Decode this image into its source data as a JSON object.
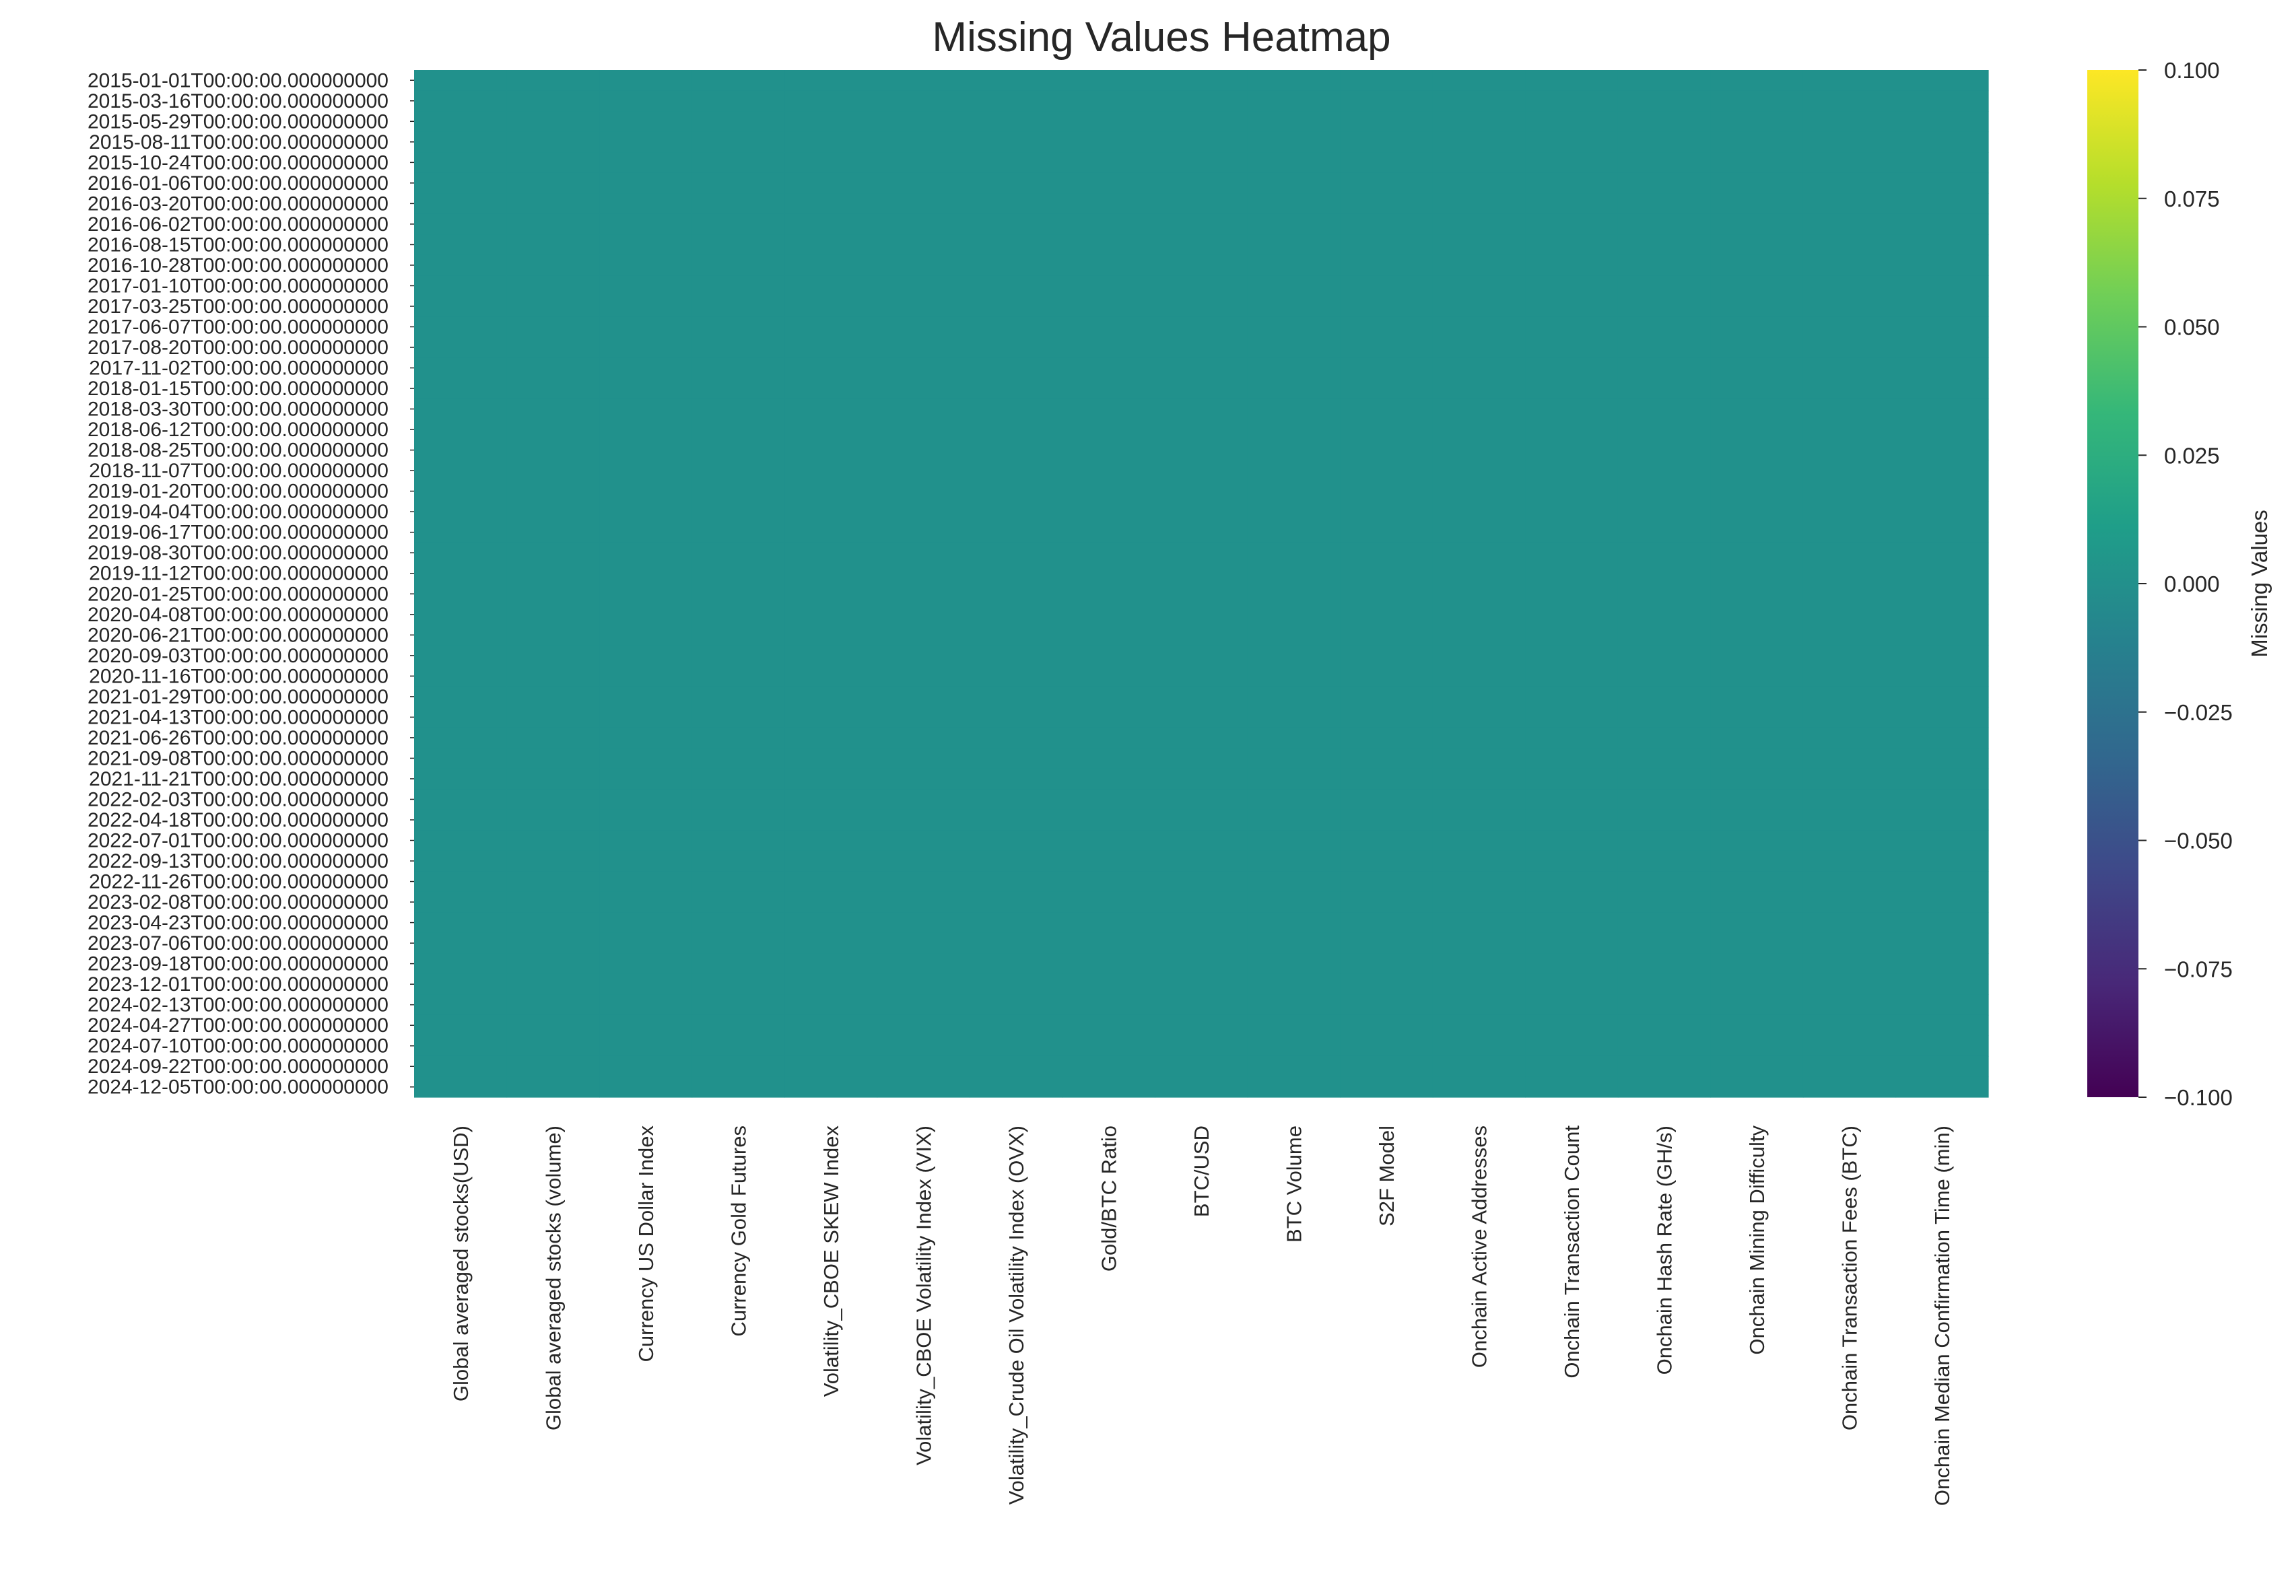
{
  "chart_data": {
    "type": "heatmap",
    "title": "Missing Values Heatmap",
    "xlabel": "",
    "ylabel": "",
    "colormap": "viridis",
    "colorbar": {
      "label": "Missing Values",
      "range": [
        -0.1,
        0.1
      ],
      "ticks": [
        "0.100",
        "0.075",
        "0.050",
        "0.025",
        "0.000",
        "−0.025",
        "−0.050",
        "−0.075",
        "−0.100"
      ],
      "tick_values": [
        0.1,
        0.075,
        0.05,
        0.025,
        0.0,
        -0.025,
        -0.05,
        -0.075,
        -0.1
      ],
      "colors": [
        "#440154",
        "#482878",
        "#3e4989",
        "#31688e",
        "#26828e",
        "#1f9e89",
        "#35b779",
        "#6ece58",
        "#b5de2b",
        "#fde725"
      ]
    },
    "cell_value": 0,
    "cell_color": "#21918c",
    "columns": [
      "Global averaged stocks(USD)",
      "Global averaged stocks (volume)",
      "Currency US Dollar Index",
      "Currency Gold Futures",
      "Volatility_CBOE SKEW Index",
      "Volatility_CBOE Volatility Index (VIX)",
      "Volatility_Crude Oil Volatility Index (OVX)",
      "Gold/BTC Ratio",
      "BTC/USD",
      "BTC Volume",
      "S2F Model",
      "Onchain Active Addresses",
      "Onchain Transaction Count",
      "Onchain Hash Rate (GH/s)",
      "Onchain Mining Difficulty",
      "Onchain Transaction Fees (BTC)",
      "Onchain Median Confirmation Time (min)"
    ],
    "row_labels": [
      "2015-01-01T00:00:00.000000000",
      "2015-03-16T00:00:00.000000000",
      "2015-05-29T00:00:00.000000000",
      "2015-08-11T00:00:00.000000000",
      "2015-10-24T00:00:00.000000000",
      "2016-01-06T00:00:00.000000000",
      "2016-03-20T00:00:00.000000000",
      "2016-06-02T00:00:00.000000000",
      "2016-08-15T00:00:00.000000000",
      "2016-10-28T00:00:00.000000000",
      "2017-01-10T00:00:00.000000000",
      "2017-03-25T00:00:00.000000000",
      "2017-06-07T00:00:00.000000000",
      "2017-08-20T00:00:00.000000000",
      "2017-11-02T00:00:00.000000000",
      "2018-01-15T00:00:00.000000000",
      "2018-03-30T00:00:00.000000000",
      "2018-06-12T00:00:00.000000000",
      "2018-08-25T00:00:00.000000000",
      "2018-11-07T00:00:00.000000000",
      "2019-01-20T00:00:00.000000000",
      "2019-04-04T00:00:00.000000000",
      "2019-06-17T00:00:00.000000000",
      "2019-08-30T00:00:00.000000000",
      "2019-11-12T00:00:00.000000000",
      "2020-01-25T00:00:00.000000000",
      "2020-04-08T00:00:00.000000000",
      "2020-06-21T00:00:00.000000000",
      "2020-09-03T00:00:00.000000000",
      "2020-11-16T00:00:00.000000000",
      "2021-01-29T00:00:00.000000000",
      "2021-04-13T00:00:00.000000000",
      "2021-06-26T00:00:00.000000000",
      "2021-09-08T00:00:00.000000000",
      "2021-11-21T00:00:00.000000000",
      "2022-02-03T00:00:00.000000000",
      "2022-04-18T00:00:00.000000000",
      "2022-07-01T00:00:00.000000000",
      "2022-09-13T00:00:00.000000000",
      "2022-11-26T00:00:00.000000000",
      "2023-02-08T00:00:00.000000000",
      "2023-04-23T00:00:00.000000000",
      "2023-07-06T00:00:00.000000000",
      "2023-09-18T00:00:00.000000000",
      "2023-12-01T00:00:00.000000000",
      "2024-02-13T00:00:00.000000000",
      "2024-04-27T00:00:00.000000000",
      "2024-07-10T00:00:00.000000000",
      "2024-09-22T00:00:00.000000000",
      "2024-12-05T00:00:00.000000000"
    ]
  }
}
